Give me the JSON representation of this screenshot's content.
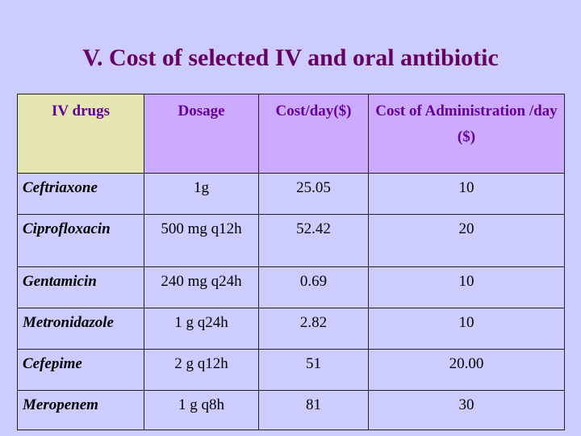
{
  "slide": {
    "title": "V. Cost of selected IV and oral antibiotic"
  },
  "table": {
    "headers": [
      "IV drugs",
      "Dosage",
      "Cost/day($)",
      "Cost of Administration /day ($)"
    ],
    "rows": [
      {
        "drug": "Ceftriaxone",
        "dosage": "1g",
        "cost_per_day": "25.05",
        "admin_cost_per_day": "10"
      },
      {
        "drug": "Ciprofloxacin",
        "dosage": "500 mg q12h",
        "cost_per_day": "52.42",
        "admin_cost_per_day": "20"
      },
      {
        "drug": "Gentamicin",
        "dosage": "240 mg q24h",
        "cost_per_day": "0.69",
        "admin_cost_per_day": "10"
      },
      {
        "drug": "Metronidazole",
        "dosage": "1 g q24h",
        "cost_per_day": "2.82",
        "admin_cost_per_day": "10"
      },
      {
        "drug": "Cefepime",
        "dosage": "2 g q12h",
        "cost_per_day": "51",
        "admin_cost_per_day": "20.00"
      },
      {
        "drug": "Meropenem",
        "dosage": "1 g q8h",
        "cost_per_day": "81",
        "admin_cost_per_day": "30"
      }
    ]
  },
  "colors": {
    "background": "#ccccff",
    "title": "#660066",
    "header_text": "#660099",
    "header_fill": "#ccaaff",
    "first_header_fill": "#e6e6b3"
  }
}
